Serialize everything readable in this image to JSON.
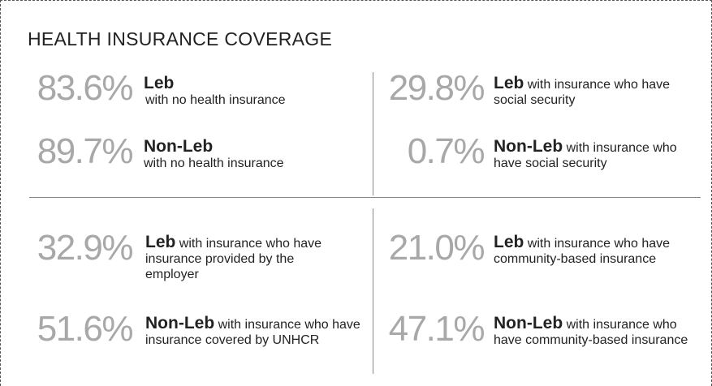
{
  "header": {
    "title": "HEALTH INSURANCE COVERAGE"
  },
  "stats": [
    {
      "value": "83.6%",
      "group": "Leb",
      "description": "with no health insurance"
    },
    {
      "value": "89.7%",
      "group": "Non-Leb",
      "description": "with no health insurance"
    },
    {
      "value": "29.8%",
      "group": "Leb",
      "description": "with insurance who have social security"
    },
    {
      "value": "0.7%",
      "group": "Non-Leb",
      "description": "with insurance who have social security"
    },
    {
      "value": "32.9%",
      "group": "Leb",
      "description": "with insurance who have insurance provided by the employer"
    },
    {
      "value": "51.6%",
      "group": "Non-Leb",
      "description": "with insurance who have insurance covered by UNHCR"
    },
    {
      "value": "21.0%",
      "group": "Leb",
      "description": "with insurance who have community-based insurance"
    },
    {
      "value": "47.1%",
      "group": "Non-Leb",
      "description": "with insurance who have community-based insurance"
    }
  ]
}
